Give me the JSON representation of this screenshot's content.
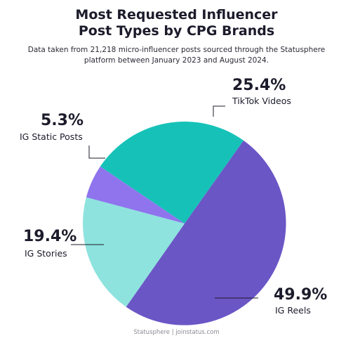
{
  "title_line1": "Most Requested Influencer",
  "title_line2": "Post Types by CPG Brands",
  "subtitle_line1": "Data taken from 21,218 micro-influencer posts sourced through the Statusphere",
  "subtitle_line2": "platform between January 2023 and August 2024.",
  "footer": "Statusphere | joinstatus.com",
  "chart_data": {
    "type": "pie",
    "title": "Most Requested Influencer Post Types by CPG Brands",
    "slices": [
      {
        "name": "TikTok Videos",
        "value": 25.4,
        "label": "25.4%",
        "color": "#16c2b8"
      },
      {
        "name": "IG Reels",
        "value": 49.9,
        "label": "49.9%",
        "color": "#6b56c6"
      },
      {
        "name": "IG Stories",
        "value": 19.4,
        "label": "19.4%",
        "color": "#8ee3de"
      },
      {
        "name": "IG Static Posts",
        "value": 5.3,
        "label": "5.3%",
        "color": "#8f74ee"
      }
    ]
  }
}
